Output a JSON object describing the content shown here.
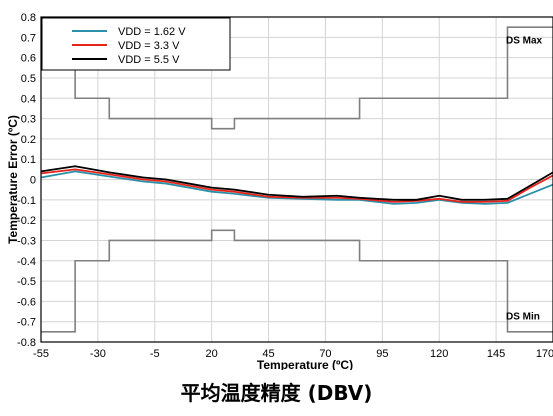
{
  "caption": "平均温度精度 (DBV)",
  "chart_data": {
    "type": "line",
    "xlabel": "Temperature (ºC)",
    "ylabel": "Temperature Error (ºC)",
    "xlim": [
      -55,
      170
    ],
    "ylim": [
      -0.8,
      0.8
    ],
    "xticks": [
      -55,
      -30,
      -5,
      20,
      45,
      70,
      95,
      120,
      145,
      170
    ],
    "yticks": [
      0.8,
      0.7,
      0.6,
      0.5,
      0.4,
      0.3,
      0.2,
      0.1,
      0,
      -0.1,
      -0.2,
      -0.3,
      -0.4,
      -0.5,
      -0.6,
      -0.7,
      -0.8
    ],
    "ytick_labels": [
      "0.8",
      "0.7",
      "0.6",
      "0.5",
      "0.4",
      "0.3",
      "0.2",
      "0.1",
      "0",
      "-0.1",
      "-0.2",
      "-0.3",
      "-0.4",
      "-0.5",
      "-0.6",
      "-0.7",
      "-0.8"
    ],
    "grid": true,
    "legend_position": "top-left",
    "series": [
      {
        "name": "VDD = 1.62 V",
        "color": "#2a8fa8",
        "x": [
          -55,
          -40,
          -25,
          -10,
          0,
          10,
          20,
          30,
          45,
          60,
          75,
          85,
          100,
          110,
          120,
          130,
          140,
          150,
          160,
          170
        ],
        "y": [
          0.01,
          0.04,
          0.015,
          -0.01,
          -0.02,
          -0.04,
          -0.06,
          -0.07,
          -0.09,
          -0.095,
          -0.1,
          -0.1,
          -0.12,
          -0.115,
          -0.1,
          -0.115,
          -0.12,
          -0.115,
          -0.07,
          -0.025
        ]
      },
      {
        "name": "VDD = 3.3 V",
        "color": "#e8231a",
        "x": [
          -55,
          -40,
          -25,
          -10,
          0,
          10,
          20,
          30,
          45,
          60,
          75,
          85,
          100,
          110,
          120,
          130,
          140,
          150,
          160,
          170
        ],
        "y": [
          0.03,
          0.05,
          0.025,
          0.0,
          -0.01,
          -0.03,
          -0.05,
          -0.06,
          -0.085,
          -0.09,
          -0.09,
          -0.095,
          -0.11,
          -0.105,
          -0.095,
          -0.11,
          -0.11,
          -0.105,
          -0.04,
          0.02
        ]
      },
      {
        "name": "VDD = 5.5 V",
        "color": "#000000",
        "x": [
          -55,
          -40,
          -25,
          -10,
          0,
          10,
          20,
          30,
          45,
          60,
          75,
          85,
          100,
          110,
          120,
          130,
          140,
          150,
          160,
          170
        ],
        "y": [
          0.04,
          0.065,
          0.035,
          0.01,
          0.0,
          -0.02,
          -0.04,
          -0.05,
          -0.075,
          -0.085,
          -0.08,
          -0.09,
          -0.1,
          -0.1,
          -0.08,
          -0.1,
          -0.1,
          -0.095,
          -0.03,
          0.035
        ]
      }
    ],
    "limits": [
      {
        "label": "DS Max",
        "color": "#808080",
        "x": [
          -55,
          -40,
          -40,
          -25,
          -25,
          20,
          20,
          30,
          30,
          85,
          85,
          150,
          150,
          170
        ],
        "y": [
          0.75,
          0.75,
          0.4,
          0.4,
          0.3,
          0.3,
          0.25,
          0.25,
          0.3,
          0.3,
          0.4,
          0.4,
          0.75,
          0.75
        ]
      },
      {
        "label": "DS Min",
        "color": "#808080",
        "x": [
          -55,
          -40,
          -40,
          -25,
          -25,
          20,
          20,
          30,
          30,
          85,
          85,
          150,
          150,
          170
        ],
        "y": [
          -0.75,
          -0.75,
          -0.4,
          -0.4,
          -0.3,
          -0.3,
          -0.25,
          -0.25,
          -0.3,
          -0.3,
          -0.4,
          -0.4,
          -0.75,
          -0.75
        ]
      }
    ]
  }
}
